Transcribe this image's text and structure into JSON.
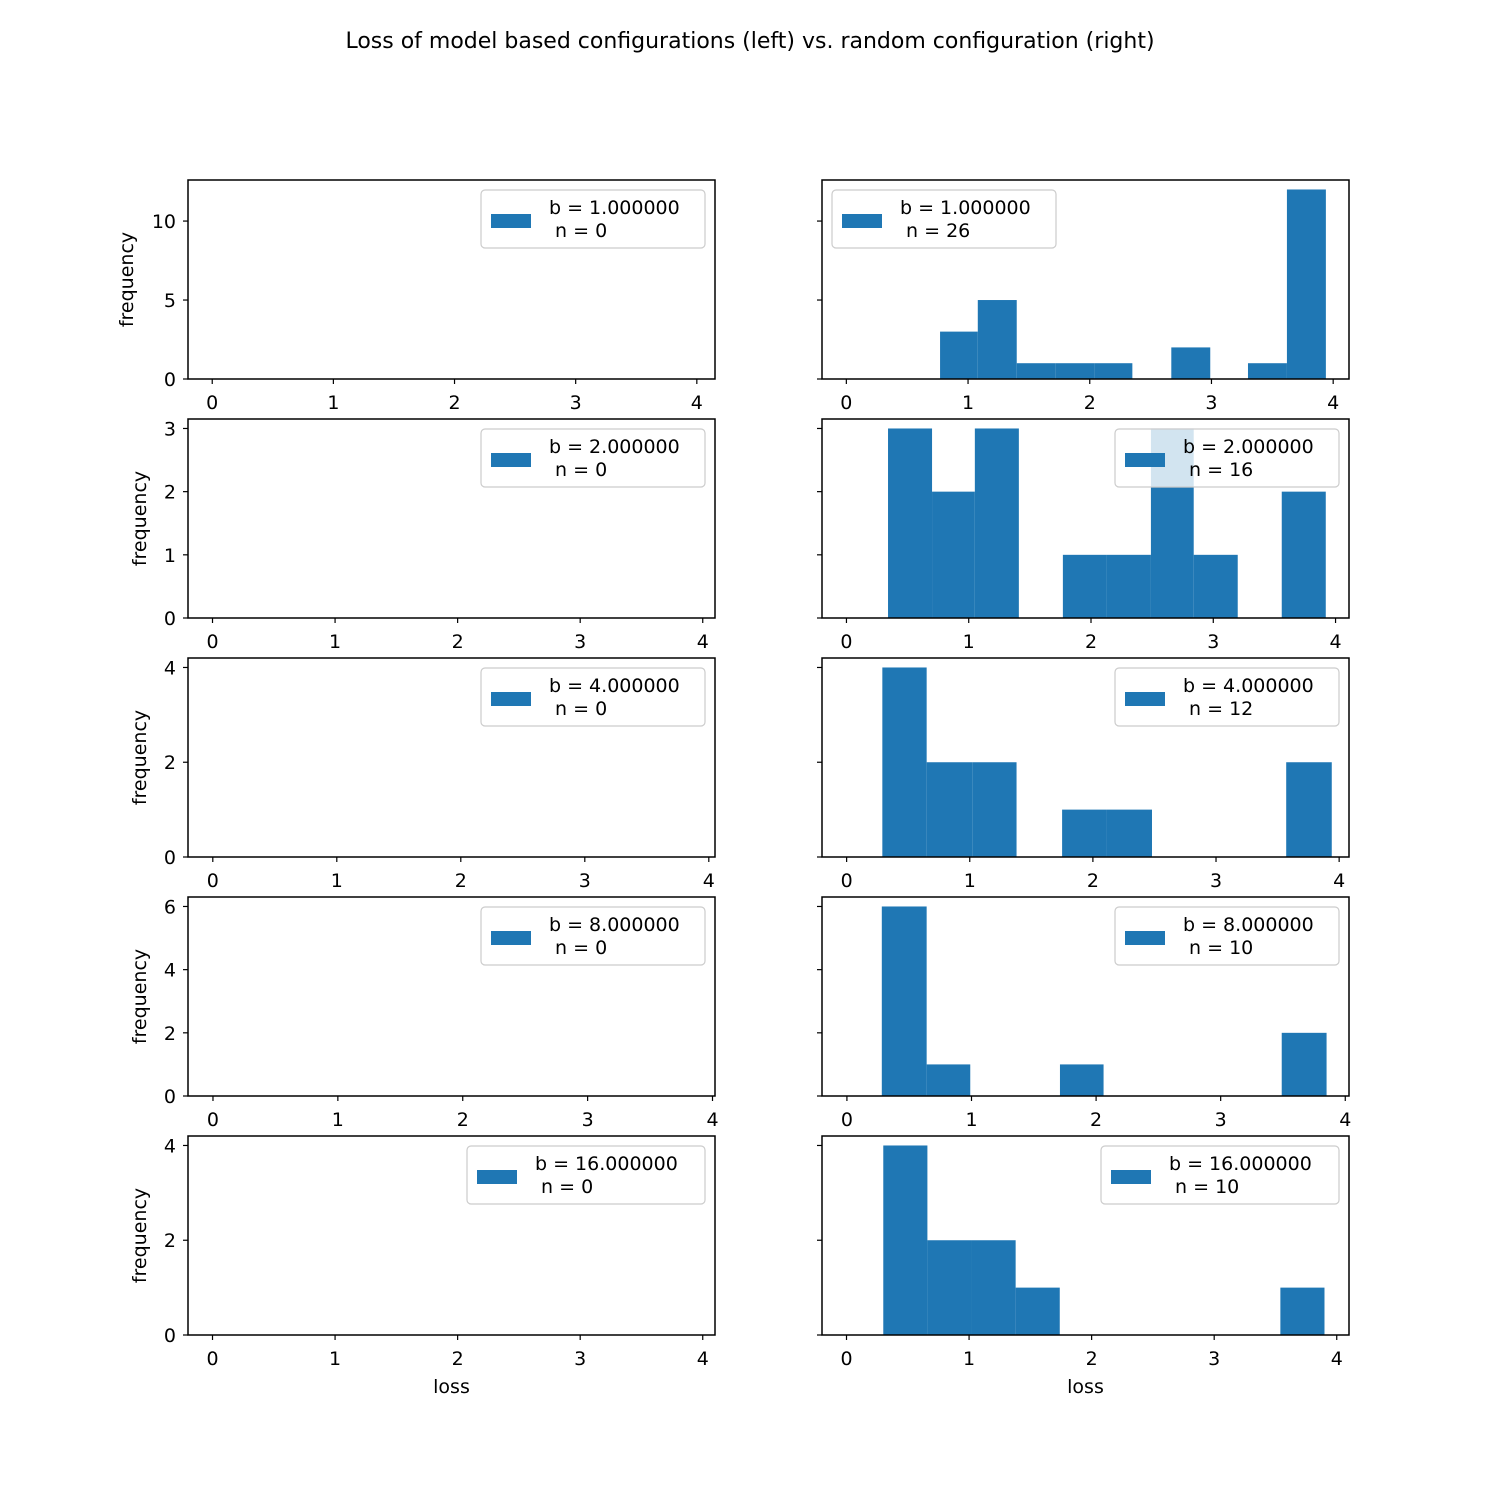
{
  "figure": {
    "title": "Loss of model based configurations (left) vs. random configuration (right)"
  },
  "colors": {
    "bar": "#1f77b4",
    "axis": "#000000",
    "legend_border": "#cccccc",
    "background": "#ffffff"
  },
  "chart_data": [
    {
      "type": "bar",
      "row": 1,
      "column": "left",
      "legend": {
        "line1": "b = 1.000000",
        "line2": " n = 0",
        "loc": "upper right"
      },
      "xlim": [
        -0.2,
        4.15
      ],
      "ylim": [
        0,
        12.6
      ],
      "xticks": [
        0,
        1,
        2,
        3,
        4
      ],
      "yticks": [
        0,
        5,
        10
      ],
      "xlabel": "",
      "ylabel": "frequency",
      "bins": []
    },
    {
      "type": "bar",
      "row": 1,
      "column": "right",
      "legend": {
        "line1": "b = 1.000000",
        "line2": " n = 26",
        "loc": "upper left"
      },
      "xlim": [
        -0.2,
        4.13
      ],
      "ylim": [
        0,
        12.6
      ],
      "xticks": [
        0,
        1,
        2,
        3,
        4
      ],
      "yticks": [
        0,
        5,
        10
      ],
      "xlabel": "",
      "ylabel": "",
      "bins": [
        {
          "x0": 0.77,
          "x1": 1.08,
          "count": 3
        },
        {
          "x0": 1.08,
          "x1": 1.4,
          "count": 5
        },
        {
          "x0": 1.4,
          "x1": 1.72,
          "count": 1
        },
        {
          "x0": 1.72,
          "x1": 2.04,
          "count": 1
        },
        {
          "x0": 2.04,
          "x1": 2.35,
          "count": 1
        },
        {
          "x0": 2.67,
          "x1": 2.99,
          "count": 2
        },
        {
          "x0": 3.3,
          "x1": 3.62,
          "count": 1
        },
        {
          "x0": 3.62,
          "x1": 3.94,
          "count": 12
        }
      ]
    },
    {
      "type": "bar",
      "row": 2,
      "column": "left",
      "legend": {
        "line1": "b = 2.000000",
        "line2": " n = 0",
        "loc": "upper right"
      },
      "xlim": [
        -0.2,
        4.1
      ],
      "ylim": [
        0,
        3.15
      ],
      "xticks": [
        0,
        1,
        2,
        3,
        4
      ],
      "yticks": [
        0,
        1,
        2,
        3
      ],
      "xlabel": "",
      "ylabel": "frequency",
      "bins": []
    },
    {
      "type": "bar",
      "row": 2,
      "column": "right",
      "legend": {
        "line1": "b = 2.000000",
        "line2": " n = 16",
        "loc": "upper right"
      },
      "xlim": [
        -0.2,
        4.11
      ],
      "ylim": [
        0,
        3.15
      ],
      "xticks": [
        0,
        1,
        2,
        3,
        4
      ],
      "yticks": [
        0,
        1,
        2,
        3
      ],
      "xlabel": "",
      "ylabel": "",
      "bins": [
        {
          "x0": 0.34,
          "x1": 0.7,
          "count": 3
        },
        {
          "x0": 0.7,
          "x1": 1.05,
          "count": 2
        },
        {
          "x0": 1.05,
          "x1": 1.41,
          "count": 3
        },
        {
          "x0": 1.77,
          "x1": 2.13,
          "count": 1
        },
        {
          "x0": 2.13,
          "x1": 2.49,
          "count": 1
        },
        {
          "x0": 2.49,
          "x1": 2.84,
          "count": 3
        },
        {
          "x0": 2.84,
          "x1": 3.2,
          "count": 1
        },
        {
          "x0": 3.56,
          "x1": 3.92,
          "count": 2
        }
      ]
    },
    {
      "type": "bar",
      "row": 3,
      "column": "left",
      "legend": {
        "line1": "b = 4.000000",
        "line2": " n = 0",
        "loc": "upper right"
      },
      "xlim": [
        -0.2,
        4.05
      ],
      "ylim": [
        0,
        4.2
      ],
      "xticks": [
        0,
        1,
        2,
        3,
        4
      ],
      "yticks": [
        0,
        2,
        4
      ],
      "xlabel": "",
      "ylabel": "frequency",
      "bins": []
    },
    {
      "type": "bar",
      "row": 3,
      "column": "right",
      "legend": {
        "line1": "b = 4.000000",
        "line2": " n = 12",
        "loc": "upper right"
      },
      "xlim": [
        -0.2,
        4.08
      ],
      "ylim": [
        0,
        4.2
      ],
      "xticks": [
        0,
        1,
        2,
        3,
        4
      ],
      "yticks": [
        0,
        2,
        4
      ],
      "xlabel": "",
      "ylabel": "",
      "bins": [
        {
          "x0": 0.29,
          "x1": 0.65,
          "count": 4
        },
        {
          "x0": 0.65,
          "x1": 1.02,
          "count": 2
        },
        {
          "x0": 1.02,
          "x1": 1.38,
          "count": 2
        },
        {
          "x0": 1.75,
          "x1": 2.11,
          "count": 1
        },
        {
          "x0": 2.11,
          "x1": 2.48,
          "count": 1
        },
        {
          "x0": 3.57,
          "x1": 3.94,
          "count": 2
        }
      ]
    },
    {
      "type": "bar",
      "row": 4,
      "column": "left",
      "legend": {
        "line1": "b = 8.000000",
        "line2": " n = 0",
        "loc": "upper right"
      },
      "xlim": [
        -0.2,
        4.02
      ],
      "ylim": [
        0,
        6.3
      ],
      "xticks": [
        0,
        1,
        2,
        3,
        4
      ],
      "yticks": [
        0,
        2,
        4,
        6
      ],
      "xlabel": "",
      "ylabel": "frequency",
      "bins": []
    },
    {
      "type": "bar",
      "row": 4,
      "column": "right",
      "legend": {
        "line1": "b = 8.000000",
        "line2": " n = 10",
        "loc": "upper right"
      },
      "xlim": [
        -0.2,
        4.03
      ],
      "ylim": [
        0,
        6.3
      ],
      "xticks": [
        0,
        1,
        2,
        3,
        4
      ],
      "yticks": [
        0,
        2,
        4,
        6
      ],
      "xlabel": "",
      "ylabel": "",
      "bins": [
        {
          "x0": 0.28,
          "x1": 0.64,
          "count": 6
        },
        {
          "x0": 0.64,
          "x1": 0.99,
          "count": 1
        },
        {
          "x0": 1.71,
          "x1": 2.06,
          "count": 1
        },
        {
          "x0": 3.49,
          "x1": 3.85,
          "count": 2
        }
      ]
    },
    {
      "type": "bar",
      "row": 5,
      "column": "left",
      "legend": {
        "line1": "b = 16.000000",
        "line2": " n = 0",
        "loc": "upper right"
      },
      "xlim": [
        -0.2,
        4.1
      ],
      "ylim": [
        0,
        4.2
      ],
      "xticks": [
        0,
        1,
        2,
        3,
        4
      ],
      "yticks": [
        0,
        2,
        4
      ],
      "xlabel": "loss",
      "ylabel": "frequency",
      "bins": []
    },
    {
      "type": "bar",
      "row": 5,
      "column": "right",
      "legend": {
        "line1": "b = 16.000000",
        "line2": " n = 10",
        "loc": "upper right"
      },
      "xlim": [
        -0.2,
        4.1
      ],
      "ylim": [
        0,
        4.2
      ],
      "xticks": [
        0,
        1,
        2,
        3,
        4
      ],
      "yticks": [
        0,
        2,
        4
      ],
      "xlabel": "loss",
      "ylabel": "",
      "bins": [
        {
          "x0": 0.3,
          "x1": 0.66,
          "count": 4
        },
        {
          "x0": 0.66,
          "x1": 1.02,
          "count": 2
        },
        {
          "x0": 1.02,
          "x1": 1.38,
          "count": 2
        },
        {
          "x0": 1.38,
          "x1": 1.74,
          "count": 1
        },
        {
          "x0": 3.54,
          "x1": 3.9,
          "count": 1
        }
      ]
    }
  ]
}
